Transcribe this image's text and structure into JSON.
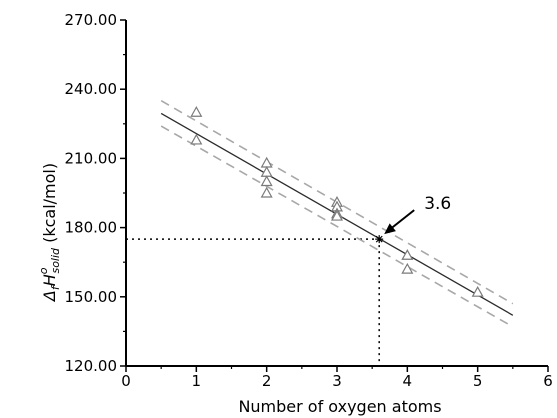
{
  "chart_data": {
    "type": "scatter",
    "title": "",
    "xlabel": "Number of oxygen atoms",
    "ylabel": {
      "delta": "Δ",
      "sub_f": "f",
      "H": "H",
      "sup_o": "o",
      "sub_solid": "solid",
      "unit": " (kcal/mol)"
    },
    "xlim": [
      0,
      6
    ],
    "ylim": [
      120,
      270
    ],
    "xticks": [
      0,
      1,
      2,
      3,
      4,
      5,
      6
    ],
    "xtick_labels": [
      "0",
      "1",
      "2",
      "3",
      "4",
      "5",
      "6"
    ],
    "yticks": [
      120,
      150,
      180,
      210,
      240,
      270
    ],
    "ytick_labels": [
      "120.00",
      "150.00",
      "180.00",
      "210.00",
      "240.00",
      "270.00"
    ],
    "grid": false,
    "series": [
      {
        "kind": "points",
        "marker": "triangle-open",
        "x": [
          1,
          1,
          2,
          2,
          2,
          2,
          3,
          3,
          3,
          3,
          4,
          4,
          5
        ],
        "y": [
          230,
          218,
          208,
          204,
          200,
          195,
          191,
          189,
          186,
          185,
          168,
          162,
          152
        ]
      },
      {
        "kind": "fit-line",
        "style": "solid",
        "x": [
          0.5,
          5.5
        ],
        "y": [
          229.5,
          142
        ]
      },
      {
        "kind": "confidence-band",
        "style": "dashed",
        "upper": {
          "x": [
            0.5,
            5.5
          ],
          "y": [
            235,
            147
          ]
        },
        "lower": {
          "x": [
            0.5,
            5.5
          ],
          "y": [
            224,
            137
          ]
        }
      }
    ],
    "highlight": {
      "x": 3.6,
      "y": 175,
      "marker": "star"
    },
    "reference_lines": {
      "style": "dotted",
      "x": 3.6,
      "y": 175
    },
    "annotations": [
      {
        "text": "3.6",
        "arrow_to": {
          "x": 3.6,
          "y": 175
        }
      }
    ],
    "colors": {
      "points": "#7a7a7a",
      "fit": "#2b2b2b",
      "band": "#a8a8a8",
      "axes": "#000000"
    }
  }
}
